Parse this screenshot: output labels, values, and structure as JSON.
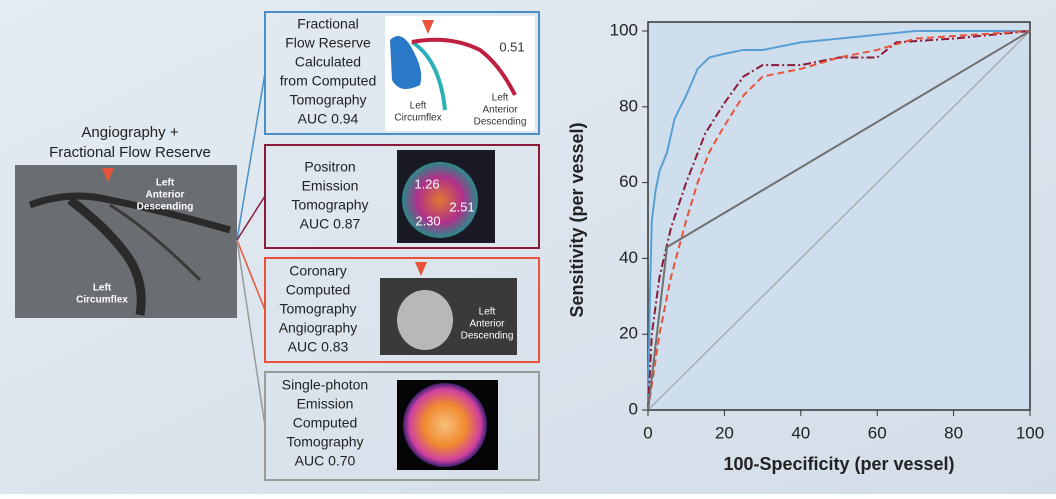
{
  "left_panel": {
    "title": [
      "Angiography +",
      "Fractional Flow Reserve"
    ],
    "image_labels": [
      [
        "Left",
        "Anterior",
        "Descending"
      ],
      [
        "Left",
        "Circumflex"
      ]
    ]
  },
  "panels": [
    {
      "color": "#4a90c8",
      "lines": [
        "Fractional",
        "Flow Reserve",
        "Calculated",
        "from Computed",
        "Tomography",
        "AUC 0.94"
      ],
      "image_labels": [
        [
          "0.51"
        ],
        [
          "Left",
          "Circumflex"
        ],
        [
          "Left",
          "Anterior",
          "Descending"
        ]
      ]
    },
    {
      "color": "#8b1a3a",
      "lines": [
        "Positron",
        "Emission",
        "Tomography",
        "AUC 0.87"
      ],
      "image_labels": [
        [
          "1.26"
        ],
        [
          "2.30"
        ],
        [
          "2.51"
        ]
      ]
    },
    {
      "color": "#e8533a",
      "lines": [
        "Coronary",
        "Computed",
        "Tomography",
        "Angiography",
        "AUC 0.83"
      ],
      "image_labels": [
        [
          "Left",
          "Anterior",
          "Descending"
        ]
      ]
    },
    {
      "color": "#9a9a9a",
      "lines": [
        "Single-photon",
        "Emission",
        "Computed",
        "Tomography",
        "AUC 0.70"
      ],
      "image_labels": []
    }
  ],
  "chart_data": {
    "type": "line",
    "x_label": "100-Specificity (per vessel)",
    "y_label": "Sensitivity (per vessel)",
    "xlim": [
      0,
      100
    ],
    "ylim": [
      0,
      100
    ],
    "xticks": [
      0,
      20,
      40,
      60,
      80,
      100
    ],
    "yticks": [
      0,
      20,
      40,
      60,
      80,
      100
    ],
    "series": [
      {
        "color": "#5a9fd4",
        "line_style": "solid",
        "x": [
          0,
          0.5,
          1,
          2,
          3,
          5,
          7,
          10,
          13,
          16,
          20,
          25,
          30,
          40,
          50,
          60,
          70,
          100
        ],
        "values": [
          0,
          30,
          50,
          58,
          63,
          68,
          77,
          83,
          90,
          93,
          94,
          95,
          95,
          97,
          98,
          99,
          100,
          100
        ]
      },
      {
        "color": "#8b1a3a",
        "line_style": "dashdot",
        "x": [
          0,
          1,
          3,
          6,
          10,
          15,
          20,
          25,
          30,
          40,
          50,
          60,
          65,
          80,
          100
        ],
        "values": [
          0,
          20,
          35,
          48,
          60,
          73,
          81,
          88,
          91,
          91,
          93,
          93,
          97,
          98,
          100
        ]
      },
      {
        "color": "#e8533a",
        "line_style": "dashed",
        "x": [
          0,
          3,
          6,
          10,
          13,
          16,
          20,
          25,
          30,
          40,
          50,
          60,
          70,
          100
        ],
        "values": [
          0,
          20,
          35,
          50,
          60,
          68,
          75,
          83,
          88,
          90,
          93,
          95,
          98,
          100
        ]
      },
      {
        "color": "#707070",
        "line_style": "solid",
        "x": [
          0,
          5,
          100
        ],
        "values": [
          0,
          43,
          100
        ]
      }
    ]
  }
}
